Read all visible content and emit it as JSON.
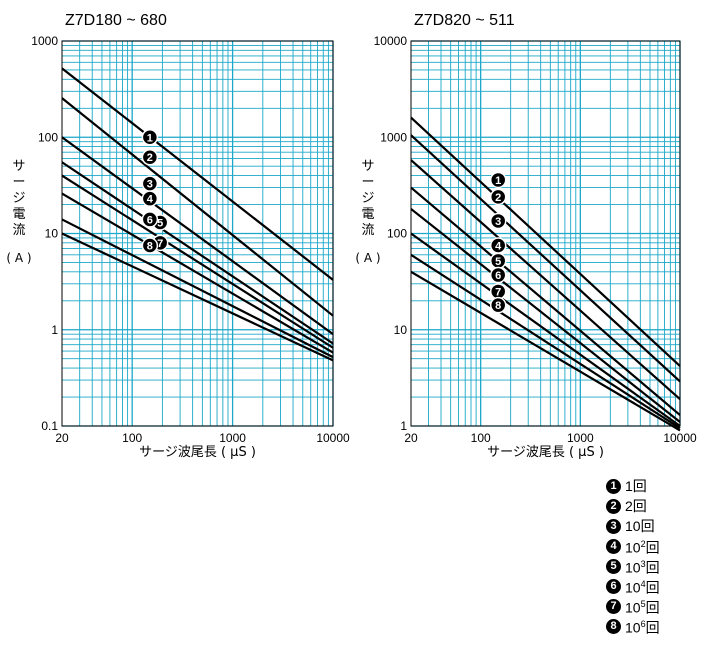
{
  "chart_data": [
    {
      "type": "line",
      "title": "Z7D180 ~ 680",
      "xlabel": "サージ波尾長 ( μS )",
      "ylabel": "サージ電流 (A)",
      "x_scale": "log",
      "y_scale": "log",
      "xlim": [
        20,
        10000
      ],
      "ylim": [
        0.1,
        1000
      ],
      "xticks": [
        "20",
        "100",
        "1000",
        "10000"
      ],
      "yticks": [
        "0.1",
        "1",
        "10",
        "100",
        "1000"
      ],
      "grid": true,
      "series": [
        {
          "name": "1",
          "x": [
            20,
            10000
          ],
          "y": [
            520,
            3.3
          ]
        },
        {
          "name": "2",
          "x": [
            20,
            10000
          ],
          "y": [
            255,
            1.4
          ]
        },
        {
          "name": "3",
          "x": [
            20,
            10000
          ],
          "y": [
            100,
            0.9
          ]
        },
        {
          "name": "4",
          "x": [
            20,
            10000
          ],
          "y": [
            55,
            0.72
          ]
        },
        {
          "name": "5",
          "x": [
            20,
            10000
          ],
          "y": [
            40,
            0.65
          ]
        },
        {
          "name": "6",
          "x": [
            20,
            10000
          ],
          "y": [
            26,
            0.58
          ]
        },
        {
          "name": "7",
          "x": [
            20,
            10000
          ],
          "y": [
            14,
            0.52
          ]
        },
        {
          "name": "8",
          "x": [
            20,
            10000
          ],
          "y": [
            10,
            0.48
          ]
        }
      ],
      "markers": [
        {
          "label": "1",
          "x": 150,
          "y": 100
        },
        {
          "label": "2",
          "x": 150,
          "y": 62
        },
        {
          "label": "3",
          "x": 150,
          "y": 33
        },
        {
          "label": "4",
          "x": 150,
          "y": 23
        },
        {
          "label": "5",
          "x": 190,
          "y": 13
        },
        {
          "label": "6",
          "x": 150,
          "y": 14
        },
        {
          "label": "7",
          "x": 190,
          "y": 8
        },
        {
          "label": "8",
          "x": 150,
          "y": 7.5
        }
      ]
    },
    {
      "type": "line",
      "title": "Z7D820 ~ 511",
      "xlabel": "サージ波尾長 ( μS )",
      "ylabel": "サージ電流 (A)",
      "x_scale": "log",
      "y_scale": "log",
      "xlim": [
        20,
        10000
      ],
      "ylim": [
        1,
        10000
      ],
      "xticks": [
        "20",
        "100",
        "1000",
        "10000"
      ],
      "yticks": [
        "1",
        "10",
        "100",
        "1000",
        "10000"
      ],
      "grid": true,
      "series": [
        {
          "name": "1",
          "x": [
            20,
            10000
          ],
          "y": [
            1600,
            4.2
          ]
        },
        {
          "name": "2",
          "x": [
            20,
            10000
          ],
          "y": [
            1050,
            2.9
          ]
        },
        {
          "name": "3",
          "x": [
            20,
            10000
          ],
          "y": [
            580,
            1.9
          ]
        },
        {
          "name": "4",
          "x": [
            20,
            10000
          ],
          "y": [
            300,
            1.3
          ]
        },
        {
          "name": "5",
          "x": [
            20,
            10000
          ],
          "y": [
            180,
            1.1
          ]
        },
        {
          "name": "6",
          "x": [
            20,
            10000
          ],
          "y": [
            100,
            1.0
          ]
        },
        {
          "name": "7",
          "x": [
            20,
            10000
          ],
          "y": [
            60,
            0.95
          ]
        },
        {
          "name": "8",
          "x": [
            20,
            10000
          ],
          "y": [
            40,
            0.9
          ]
        }
      ],
      "markers": [
        {
          "label": "1",
          "x": 150,
          "y": 360
        },
        {
          "label": "2",
          "x": 150,
          "y": 240
        },
        {
          "label": "3",
          "x": 150,
          "y": 135
        },
        {
          "label": "4",
          "x": 150,
          "y": 75
        },
        {
          "label": "5",
          "x": 150,
          "y": 52
        },
        {
          "label": "6",
          "x": 150,
          "y": 37
        },
        {
          "label": "7",
          "x": 150,
          "y": 25
        },
        {
          "label": "8",
          "x": 150,
          "y": 18
        }
      ]
    }
  ],
  "legend": [
    {
      "num": "1",
      "base": "1",
      "exp": "",
      "unit": "回"
    },
    {
      "num": "2",
      "base": "2",
      "exp": "",
      "unit": "回"
    },
    {
      "num": "3",
      "base": "10",
      "exp": "",
      "unit": "回"
    },
    {
      "num": "4",
      "base": "10",
      "exp": "2",
      "unit": "回"
    },
    {
      "num": "5",
      "base": "10",
      "exp": "3",
      "unit": "回"
    },
    {
      "num": "6",
      "base": "10",
      "exp": "4",
      "unit": "回"
    },
    {
      "num": "7",
      "base": "10",
      "exp": "5",
      "unit": "回"
    },
    {
      "num": "8",
      "base": "10",
      "exp": "6",
      "unit": "回"
    }
  ],
  "colors": {
    "grid": "#1aa7c9",
    "line": "#000000",
    "marker_fill": "#000000",
    "marker_text": "#ffffff"
  }
}
